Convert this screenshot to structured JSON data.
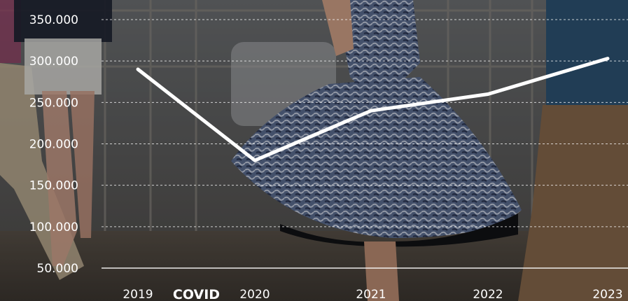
{
  "chart_data": {
    "type": "line",
    "title": "",
    "xlabel": "",
    "ylabel": "",
    "x": [
      "2019",
      "2020",
      "2021",
      "2022",
      "2023"
    ],
    "y_ticks": [
      "50.000",
      "100.000",
      "150.000",
      "200.000",
      "250.000",
      "300.000",
      "350.000"
    ],
    "ylim": [
      50000,
      360000
    ],
    "series": [
      {
        "values": [
          290000,
          180000,
          240000,
          260000,
          303000
        ]
      }
    ],
    "annotations": [
      {
        "text": "COVID",
        "between": [
          "2019",
          "2020"
        ]
      }
    ],
    "grid": "horizontal dashed",
    "line_color": "#ffffff",
    "background": "photo of people dancing outdoors (dark overlay)"
  }
}
